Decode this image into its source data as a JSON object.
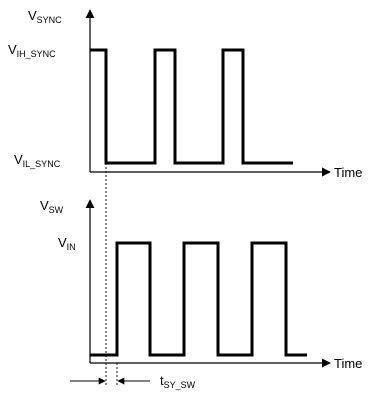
{
  "sync_plot": {
    "axis_label": {
      "main": "V",
      "sub": "SYNC"
    },
    "high_label": {
      "main": "V",
      "sub": "IH_SYNC"
    },
    "low_label": {
      "main": "V",
      "sub": "IL_SYNC"
    },
    "time_label": "Time"
  },
  "sw_plot": {
    "axis_label": {
      "main": "V",
      "sub": "SW"
    },
    "high_label": {
      "main": "V",
      "sub": "IN"
    },
    "time_label": "Time"
  },
  "delay_label": {
    "main": "t",
    "sub": "SY_SW"
  },
  "colors": {
    "stroke": "#000000",
    "background": "#ffffff"
  }
}
